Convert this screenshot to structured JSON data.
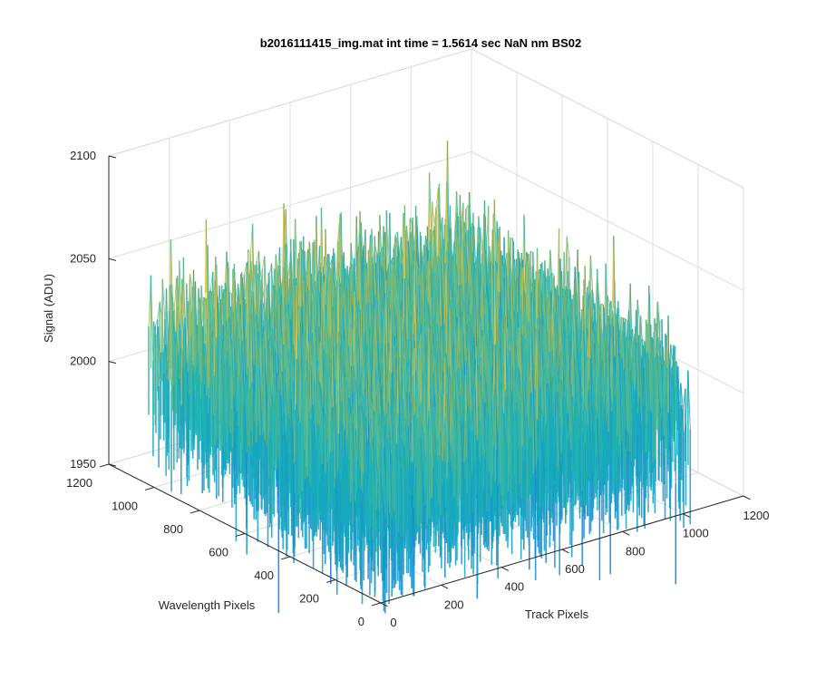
{
  "chart_data": {
    "type": "surface",
    "title": "b2016111415_img.mat int time = 1.5614 sec  NaN nm BS02",
    "xlabel": "Track Pixels",
    "ylabel": "Wavelength Pixels",
    "zlabel": "Signal (ADU)",
    "xlim": [
      0,
      1200
    ],
    "ylim": [
      0,
      1200
    ],
    "zlim": [
      1950,
      2100
    ],
    "x_ticks": [
      "0",
      "200",
      "400",
      "600",
      "800",
      "1000",
      "1200"
    ],
    "y_ticks": [
      "0",
      "200",
      "400",
      "600",
      "800",
      "1000",
      "1200"
    ],
    "z_ticks": [
      "1950",
      "2000",
      "2050",
      "2100"
    ],
    "x_tick_values": [
      0,
      200,
      400,
      600,
      800,
      1000,
      1200
    ],
    "y_tick_values": [
      0,
      200,
      400,
      600,
      800,
      1000,
      1200
    ],
    "z_tick_values": [
      1950,
      2000,
      2050,
      2100
    ],
    "data_extent": {
      "x": [
        0,
        1024
      ],
      "y": [
        0,
        1024
      ]
    },
    "signal_baseline": 2020,
    "signal_range": [
      1965,
      2075
    ],
    "grid": true,
    "colormap": "parula",
    "colors": {
      "low": "#0f73e6",
      "mid": "#1ab3b5",
      "high": "#e8c23a",
      "axis": "#262626",
      "grid": "#dcdcdc"
    }
  }
}
